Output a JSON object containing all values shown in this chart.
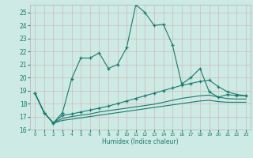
{
  "xlabel": "Humidex (Indice chaleur)",
  "ylabel": "",
  "bg_color": "#cdeae4",
  "grid_color": "#b0b0b0",
  "line_color": "#1a7a6e",
  "xlim": [
    -0.5,
    23.5
  ],
  "ylim": [
    16,
    25.6
  ],
  "yticks": [
    16,
    17,
    18,
    19,
    20,
    21,
    22,
    23,
    24,
    25
  ],
  "xticks": [
    0,
    1,
    2,
    3,
    4,
    5,
    6,
    7,
    8,
    9,
    10,
    11,
    12,
    13,
    14,
    15,
    16,
    17,
    18,
    19,
    20,
    21,
    22,
    23
  ],
  "line1_x": [
    0,
    1,
    2,
    3,
    4,
    5,
    6,
    7,
    8,
    9,
    10,
    11,
    12,
    13,
    14,
    15,
    16,
    17,
    18,
    19,
    20,
    21,
    22,
    23
  ],
  "line1_y": [
    18.8,
    17.3,
    16.5,
    17.3,
    19.9,
    21.5,
    21.5,
    21.9,
    20.7,
    21.0,
    22.3,
    25.6,
    25.0,
    24.0,
    24.1,
    22.5,
    19.5,
    20.0,
    20.7,
    18.9,
    18.5,
    18.7,
    18.6,
    18.6
  ],
  "line2_x": [
    0,
    1,
    2,
    3,
    4,
    5,
    6,
    7,
    8,
    9,
    10,
    11,
    12,
    13,
    14,
    15,
    16,
    17,
    18,
    19,
    20,
    21,
    22,
    23
  ],
  "line2_y": [
    18.8,
    17.3,
    16.5,
    17.1,
    17.2,
    17.35,
    17.5,
    17.65,
    17.8,
    18.0,
    18.2,
    18.4,
    18.6,
    18.8,
    19.0,
    19.2,
    19.4,
    19.55,
    19.7,
    19.8,
    19.3,
    18.9,
    18.7,
    18.6
  ],
  "line3_x": [
    0,
    1,
    2,
    3,
    4,
    5,
    6,
    7,
    8,
    9,
    10,
    11,
    12,
    13,
    14,
    15,
    16,
    17,
    18,
    19,
    20,
    21,
    22,
    23
  ],
  "line3_y": [
    18.8,
    17.3,
    16.5,
    16.85,
    17.0,
    17.1,
    17.2,
    17.35,
    17.45,
    17.55,
    17.65,
    17.75,
    17.85,
    17.95,
    18.1,
    18.25,
    18.4,
    18.5,
    18.6,
    18.65,
    18.5,
    18.38,
    18.35,
    18.35
  ],
  "line4_x": [
    0,
    1,
    2,
    3,
    4,
    5,
    6,
    7,
    8,
    9,
    10,
    11,
    12,
    13,
    14,
    15,
    16,
    17,
    18,
    19,
    20,
    21,
    22,
    23
  ],
  "line4_y": [
    18.8,
    17.3,
    16.5,
    16.7,
    16.8,
    16.9,
    17.0,
    17.1,
    17.2,
    17.3,
    17.4,
    17.5,
    17.6,
    17.7,
    17.8,
    17.9,
    18.0,
    18.1,
    18.2,
    18.25,
    18.15,
    18.1,
    18.1,
    18.1
  ]
}
